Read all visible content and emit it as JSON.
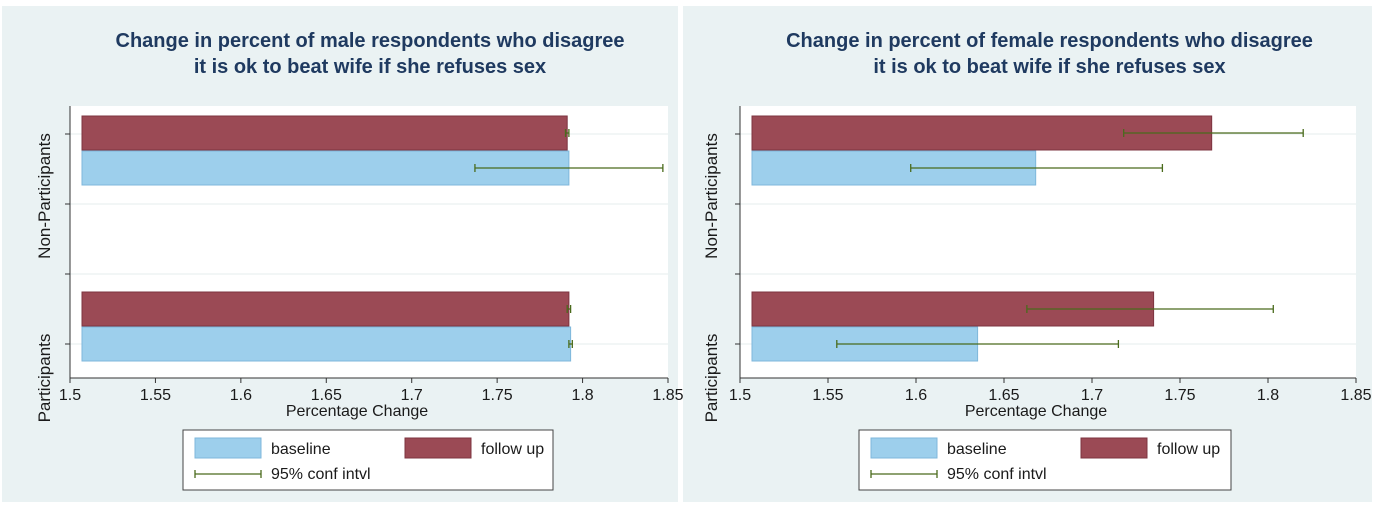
{
  "chart_data": [
    {
      "type": "bar",
      "orientation": "horizontal",
      "title": "Change in percent of male respondents who disagree\nit is ok to beat wife if she refuses sex",
      "xlabel": "Percentage Change",
      "ylabel": "",
      "xlim": [
        1.5,
        1.85
      ],
      "xticks": [
        "1.5",
        "1.55",
        "1.6",
        "1.65",
        "1.7",
        "1.75",
        "1.8",
        "1.85"
      ],
      "categories": [
        "Non-Participants",
        "Participants"
      ],
      "series": [
        {
          "name": "follow up",
          "color": "#9b4a55",
          "values": [
            1.791,
            1.792
          ]
        },
        {
          "name": "baseline",
          "color": "#9dcfec",
          "values": [
            1.792,
            1.793
          ]
        }
      ],
      "conf_intervals": {
        "name": "95% conf intvl",
        "color": "#4a6b1c",
        "follow up": [
          [
            1.79,
            1.792
          ],
          [
            1.791,
            1.793
          ]
        ],
        "baseline": [
          [
            1.737,
            1.847
          ],
          [
            1.792,
            1.794
          ]
        ]
      },
      "grid": true,
      "legend": {
        "position": "bottom",
        "entries": [
          "baseline",
          "follow up",
          "95% conf intvl"
        ]
      }
    },
    {
      "type": "bar",
      "orientation": "horizontal",
      "title": "Change in percent of female respondents who disagree\nit is ok to beat wife if she refuses sex",
      "xlabel": "Percentage Change",
      "ylabel": "",
      "xlim": [
        1.5,
        1.85
      ],
      "xticks": [
        "1.5",
        "1.55",
        "1.6",
        "1.65",
        "1.7",
        "1.75",
        "1.8",
        "1.85"
      ],
      "categories": [
        "Non-Participants",
        "Participants"
      ],
      "series": [
        {
          "name": "follow up",
          "color": "#9b4a55",
          "values": [
            1.768,
            1.735
          ]
        },
        {
          "name": "baseline",
          "color": "#9dcfec",
          "values": [
            1.668,
            1.635
          ]
        }
      ],
      "conf_intervals": {
        "name": "95% conf intvl",
        "color": "#4a6b1c",
        "follow up": [
          [
            1.718,
            1.82
          ],
          [
            1.663,
            1.803
          ]
        ],
        "baseline": [
          [
            1.597,
            1.74
          ],
          [
            1.555,
            1.715
          ]
        ]
      },
      "grid": true,
      "legend": {
        "position": "bottom",
        "entries": [
          "baseline",
          "follow up",
          "95% conf intvl"
        ]
      }
    }
  ]
}
